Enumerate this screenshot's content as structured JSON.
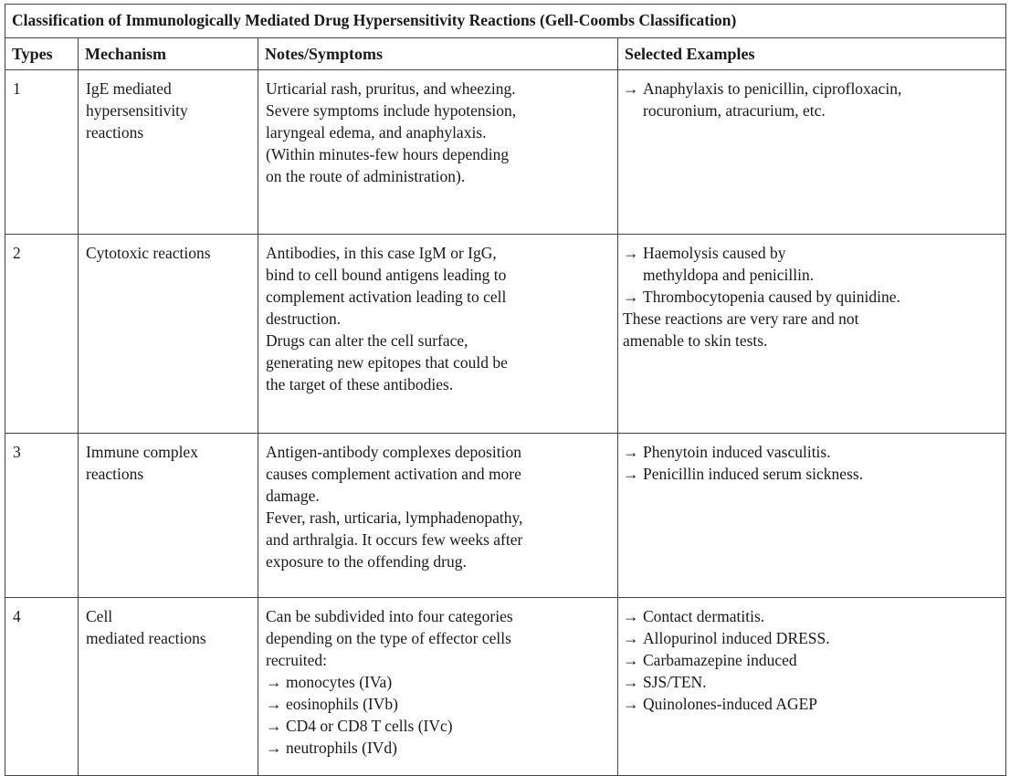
{
  "title": "Classification of Immunologically Mediated Drug Hypersensitivity Reactions (Gell-Coombs Classification)",
  "headers": [
    "Types",
    "Mechanism",
    "Notes/Symptoms",
    "Selected Examples"
  ],
  "rows": [
    {
      "type": "1",
      "mechanism": [
        "IgE mediated",
        "hypersensitivity",
        "reactions"
      ],
      "notes": [
        "Urticarial rash, pruritus, and wheezing.",
        "Severe symptoms include hypotension,",
        "laryngeal edema, and anaphylaxis.",
        "(Within minutes-few hours depending",
        "on the route of administration)."
      ],
      "examples": [
        {
          "kind": "arrow",
          "text": "Anaphylaxis to penicillin, ciprofloxacin,"
        },
        {
          "kind": "indent",
          "text": "rocuronium, atracurium, etc."
        }
      ]
    },
    {
      "type": "2",
      "mechanism": [
        "Cytotoxic reactions"
      ],
      "notes": [
        "Antibodies, in this case IgM or IgG,",
        "bind to cell bound antigens leading to",
        "complement activation leading to cell",
        "destruction.",
        "Drugs can alter the cell surface,",
        "generating new epitopes that could be",
        "the target of these antibodies."
      ],
      "examples": [
        {
          "kind": "arrow",
          "text": "Haemolysis caused by"
        },
        {
          "kind": "indent",
          "text": "methyldopa and penicillin."
        },
        {
          "kind": "arrow",
          "text": "Thrombocytopenia caused by quinidine."
        },
        {
          "kind": "plain",
          "text": "These reactions are very rare and not"
        },
        {
          "kind": "plain",
          "text": "amenable to skin tests."
        }
      ]
    },
    {
      "type": "3",
      "mechanism": [
        "Immune complex",
        "reactions"
      ],
      "notes": [
        "Antigen-antibody complexes deposition",
        "causes complement activation and more",
        "damage.",
        "Fever, rash, urticaria, lymphadenopathy,",
        "and arthralgia. It occurs few weeks after",
        "exposure to the offending drug."
      ],
      "examples": [
        {
          "kind": "arrow",
          "text": "Phenytoin induced vasculitis."
        },
        {
          "kind": "arrow",
          "text": "Penicillin induced serum sickness."
        }
      ]
    },
    {
      "type": "4",
      "mechanism": [
        "Cell",
        "mediated reactions"
      ],
      "notes": [
        {
          "kind": "plain",
          "text": "Can be subdivided into four categories"
        },
        {
          "kind": "plain",
          "text": "depending on the type of effector cells"
        },
        {
          "kind": "plain",
          "text": "recruited:"
        },
        {
          "kind": "arrow",
          "text": "monocytes (IVa)"
        },
        {
          "kind": "arrow",
          "text": "eosinophils (IVb)"
        },
        {
          "kind": "arrow",
          "text": "CD4 or CD8 T cells (IVc)"
        },
        {
          "kind": "arrow",
          "text": "neutrophils (IVd)"
        }
      ],
      "examples": [
        {
          "kind": "arrow",
          "text": "Contact dermatitis."
        },
        {
          "kind": "arrow",
          "text": "Allopurinol induced DRESS."
        },
        {
          "kind": "arrow",
          "text": "Carbamazepine induced"
        },
        {
          "kind": "arrow",
          "text": "SJS/TEN."
        },
        {
          "kind": "arrow",
          "text": "Quinolones-induced AGEP"
        }
      ]
    }
  ],
  "arrow_glyph": "→"
}
